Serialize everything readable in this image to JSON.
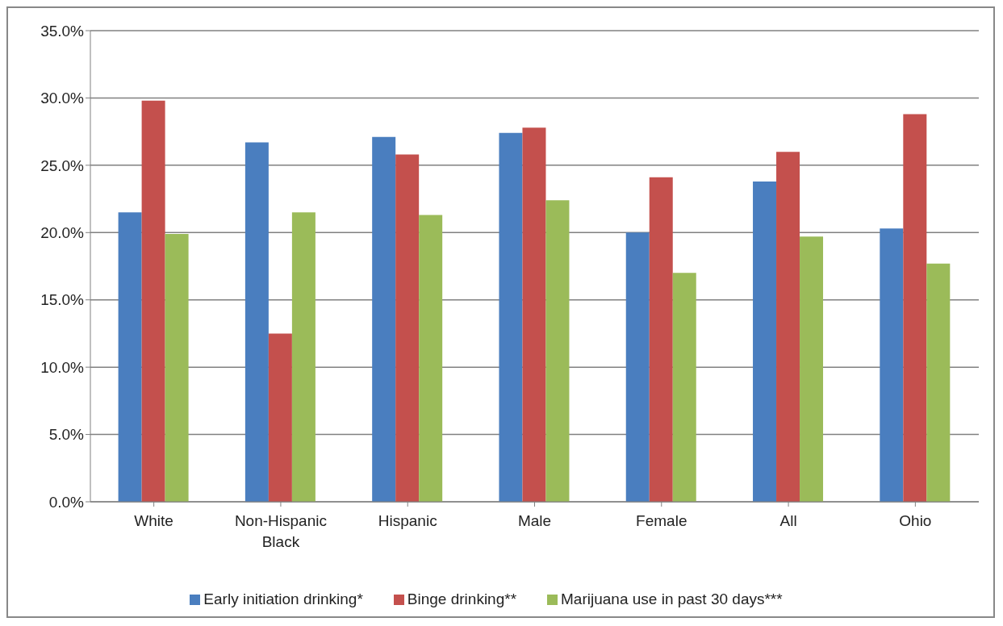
{
  "chart_data": {
    "type": "bar",
    "categories": [
      "White",
      "Non-Hispanic Black",
      "Hispanic",
      "Male",
      "Female",
      "All",
      "Ohio"
    ],
    "series": [
      {
        "name": "Early initiation drinking*",
        "color": "#4a7ebf",
        "values": [
          21.5,
          26.7,
          27.1,
          27.4,
          20.0,
          23.8,
          20.3
        ]
      },
      {
        "name": "Binge drinking**",
        "color": "#c4504d",
        "values": [
          29.8,
          12.5,
          25.8,
          27.8,
          24.1,
          26.0,
          28.8
        ]
      },
      {
        "name": "Marijuana use in past 30 days***",
        "color": "#9bbb59",
        "values": [
          19.9,
          21.5,
          21.3,
          22.4,
          17.0,
          19.7,
          17.7
        ]
      }
    ],
    "ylim": [
      0,
      35
    ],
    "yticks": [
      {
        "value": 0,
        "label": "0.0%"
      },
      {
        "value": 5,
        "label": "5.0%"
      },
      {
        "value": 10,
        "label": "10.0%"
      },
      {
        "value": 15,
        "label": "15.0%"
      },
      {
        "value": 20,
        "label": "20.0%"
      },
      {
        "value": 25,
        "label": "25.0%"
      },
      {
        "value": 30,
        "label": "30.0%"
      },
      {
        "value": 35,
        "label": "35.0%"
      }
    ],
    "grid": "y",
    "legend": "bottom"
  }
}
